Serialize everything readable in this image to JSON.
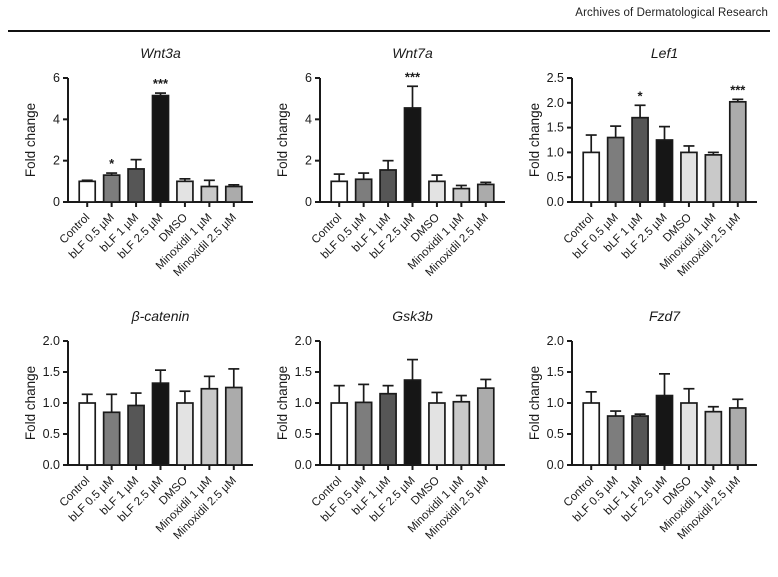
{
  "header": {
    "journal": "Archives of Dermatological Research"
  },
  "figure": {
    "ylabel": "Fold change",
    "axis_color": "#1a1a1a",
    "bar_border_color": "#1a1a1a"
  },
  "chart_data": [
    {
      "type": "bar",
      "title": "Wnt3a",
      "ylabel": "Fold change",
      "categories": [
        "Control",
        "bLF 0.5 µM",
        "bLF 1 µM",
        "bLF 2.5 µM",
        "DMSO",
        "Minoxidil 1 µM",
        "Minoxidil 2.5 µM"
      ],
      "values": [
        1.0,
        1.3,
        1.6,
        5.15,
        1.0,
        0.75,
        0.75
      ],
      "errors": [
        0.05,
        0.1,
        0.45,
        0.12,
        0.12,
        0.3,
        0.08
      ],
      "significance": [
        "",
        "*",
        "",
        "***",
        "",
        "",
        ""
      ],
      "ylim": [
        0,
        6
      ],
      "yticks": [
        0,
        2,
        4,
        6
      ],
      "ytick_labels": [
        "0",
        "2",
        "4",
        "6"
      ],
      "bar_colors": [
        "#ffffff",
        "#7d7d7d",
        "#565656",
        "#161616",
        "#e3e3e3",
        "#c9c9c9",
        "#ababab"
      ],
      "grid": false,
      "legend": null
    },
    {
      "type": "bar",
      "title": "Wnt7a",
      "ylabel": "Fold change",
      "categories": [
        "Control",
        "bLF 0.5 µM",
        "bLF 1 µM",
        "bLF 2.5 µM",
        "DMSO",
        "Minoxidil 1 µM",
        "Minoxidil 2.5 µM"
      ],
      "values": [
        1.0,
        1.1,
        1.55,
        4.55,
        1.0,
        0.65,
        0.85
      ],
      "errors": [
        0.35,
        0.3,
        0.45,
        1.05,
        0.3,
        0.15,
        0.1
      ],
      "significance": [
        "",
        "",
        "",
        "***",
        "",
        "",
        ""
      ],
      "ylim": [
        0,
        6
      ],
      "yticks": [
        0,
        2,
        4,
        6
      ],
      "ytick_labels": [
        "0",
        "2",
        "4",
        "6"
      ],
      "bar_colors": [
        "#ffffff",
        "#7d7d7d",
        "#565656",
        "#161616",
        "#e3e3e3",
        "#c9c9c9",
        "#ababab"
      ],
      "grid": false,
      "legend": null
    },
    {
      "type": "bar",
      "title": "Lef1",
      "ylabel": "Fold change",
      "categories": [
        "Control",
        "bLF 0.5 µM",
        "bLF 1 µM",
        "bLF 2.5 µM",
        "DMSO",
        "Minoxidil 1 µM",
        "Minoxidil 2.5 µM"
      ],
      "values": [
        1.0,
        1.3,
        1.7,
        1.25,
        1.0,
        0.95,
        2.02
      ],
      "errors": [
        0.35,
        0.23,
        0.25,
        0.27,
        0.13,
        0.05,
        0.05
      ],
      "significance": [
        "",
        "",
        "*",
        "",
        "",
        "",
        "***"
      ],
      "ylim": [
        0,
        2.5
      ],
      "yticks": [
        0,
        0.5,
        1.0,
        1.5,
        2.0,
        2.5
      ],
      "ytick_labels": [
        "0.0",
        "0.5",
        "1.0",
        "1.5",
        "2.0",
        "2.5"
      ],
      "bar_colors": [
        "#ffffff",
        "#7d7d7d",
        "#565656",
        "#161616",
        "#e3e3e3",
        "#c9c9c9",
        "#ababab"
      ],
      "grid": false,
      "legend": null
    },
    {
      "type": "bar",
      "title": "β-catenin",
      "ylabel": "Fold change",
      "categories": [
        "Control",
        "bLF 0.5 µM",
        "bLF 1 µM",
        "bLF 2.5 µM",
        "DMSO",
        "Minoxidil 1 µM",
        "Minoxidil 2.5 µM"
      ],
      "values": [
        1.0,
        0.85,
        0.96,
        1.32,
        1.0,
        1.23,
        1.25
      ],
      "errors": [
        0.14,
        0.29,
        0.2,
        0.21,
        0.19,
        0.2,
        0.3
      ],
      "significance": [
        "",
        "",
        "",
        "",
        "",
        "",
        ""
      ],
      "ylim": [
        0,
        2.0
      ],
      "yticks": [
        0,
        0.5,
        1.0,
        1.5,
        2.0
      ],
      "ytick_labels": [
        "0.0",
        "0.5",
        "1.0",
        "1.5",
        "2.0"
      ],
      "bar_colors": [
        "#ffffff",
        "#7d7d7d",
        "#565656",
        "#161616",
        "#e3e3e3",
        "#c9c9c9",
        "#ababab"
      ],
      "grid": false,
      "legend": null
    },
    {
      "type": "bar",
      "title": "Gsk3b",
      "ylabel": "Fold change",
      "categories": [
        "Control",
        "bLF 0.5 µM",
        "bLF 1 µM",
        "bLF 2.5 µM",
        "DMSO",
        "Minoxidil 1 µM",
        "Minoxidil 2.5 µM"
      ],
      "values": [
        1.0,
        1.01,
        1.15,
        1.37,
        1.0,
        1.02,
        1.24
      ],
      "errors": [
        0.28,
        0.29,
        0.13,
        0.33,
        0.17,
        0.1,
        0.14
      ],
      "significance": [
        "",
        "",
        "",
        "",
        "",
        "",
        ""
      ],
      "ylim": [
        0,
        2.0
      ],
      "yticks": [
        0,
        0.5,
        1.0,
        1.5,
        2.0
      ],
      "ytick_labels": [
        "0.0",
        "0.5",
        "1.0",
        "1.5",
        "2.0"
      ],
      "bar_colors": [
        "#ffffff",
        "#7d7d7d",
        "#565656",
        "#161616",
        "#e3e3e3",
        "#c9c9c9",
        "#ababab"
      ],
      "grid": false,
      "legend": null
    },
    {
      "type": "bar",
      "title": "Fzd7",
      "ylabel": "Fold change",
      "categories": [
        "Control",
        "bLF 0.5 µM",
        "bLF 1 µM",
        "bLF 2.5 µM",
        "DMSO",
        "Minoxidil 1 µM",
        "Minoxidil 2.5 µM"
      ],
      "values": [
        1.0,
        0.79,
        0.79,
        1.12,
        1.0,
        0.86,
        0.92
      ],
      "errors": [
        0.18,
        0.08,
        0.03,
        0.35,
        0.23,
        0.08,
        0.14
      ],
      "significance": [
        "",
        "",
        "",
        "",
        "",
        "",
        ""
      ],
      "ylim": [
        0,
        2.0
      ],
      "yticks": [
        0,
        0.5,
        1.0,
        1.5,
        2.0
      ],
      "ytick_labels": [
        "0.0",
        "0.5",
        "1.0",
        "1.5",
        "2.0"
      ],
      "bar_colors": [
        "#ffffff",
        "#7d7d7d",
        "#565656",
        "#161616",
        "#e3e3e3",
        "#c9c9c9",
        "#ababab"
      ],
      "grid": false,
      "legend": null
    }
  ]
}
